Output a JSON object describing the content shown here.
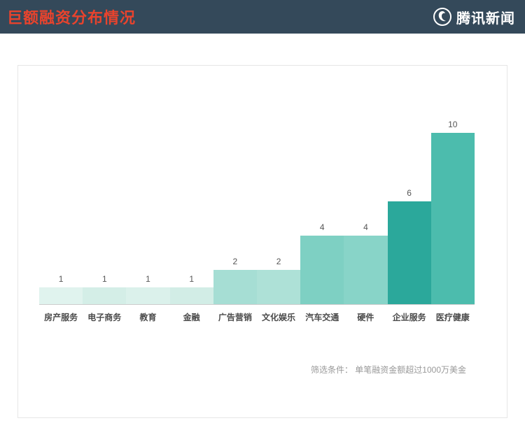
{
  "header": {
    "title": "巨额融资分布情况",
    "logo_text": "腾讯新闻",
    "bg_color": "#34495a",
    "title_color": "#e8432d"
  },
  "chart_data": {
    "type": "bar",
    "title": "",
    "xlabel": "",
    "ylabel": "",
    "categories": [
      "房产服务",
      "电子商务",
      "教育",
      "金融",
      "广告营销",
      "文化娱乐",
      "汽车交通",
      "硬件",
      "企业服务",
      "医疗健康"
    ],
    "values": [
      1,
      1,
      1,
      1,
      2,
      2,
      4,
      4,
      6,
      10
    ],
    "colors": [
      "#e0f3ee",
      "#d4eee7",
      "#dbf1eb",
      "#d2ede6",
      "#a6ded4",
      "#aee1d7",
      "#7ed0c3",
      "#88d4c8",
      "#2ba89b",
      "#4cbcad"
    ],
    "ylim": [
      0,
      11
    ],
    "grid": false,
    "legend": "none",
    "note": "筛选条件： 单笔融资金额超过1000万美金"
  }
}
